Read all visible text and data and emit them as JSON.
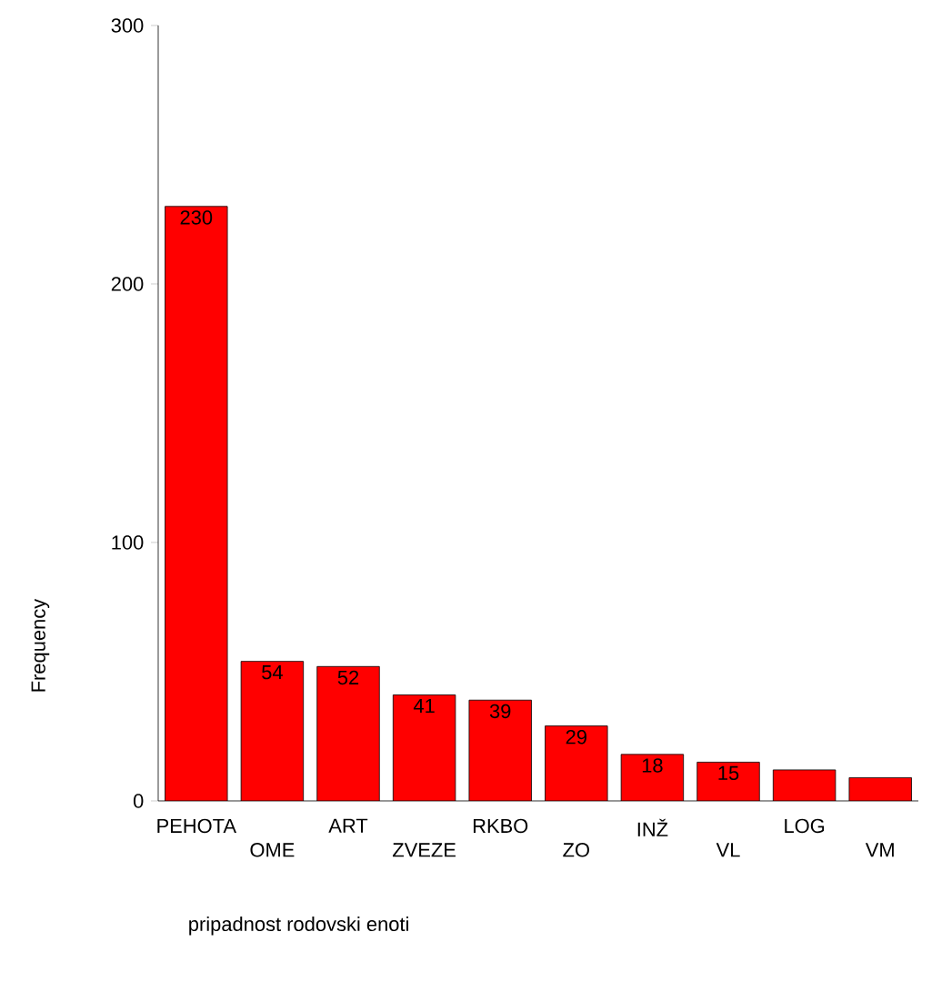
{
  "chart_data": {
    "type": "bar",
    "xlabel": "pripadnost rodovski enoti",
    "ylabel": "Frequency",
    "categories": [
      "PEHOTA",
      "OME",
      "ART",
      "ZVEZE",
      "RKBO",
      "ZO",
      "INŽ",
      "VL",
      "LOG",
      "VM"
    ],
    "values": [
      230,
      54,
      52,
      41,
      39,
      29,
      18,
      15,
      12,
      9
    ],
    "value_labels": [
      "230",
      "54",
      "52",
      "41",
      "39",
      "29",
      "18",
      "15",
      null,
      null
    ],
    "color": "#ff0000",
    "ylim": [
      0,
      300
    ],
    "yticks": [
      0,
      100,
      200,
      300
    ],
    "grid": false
  }
}
